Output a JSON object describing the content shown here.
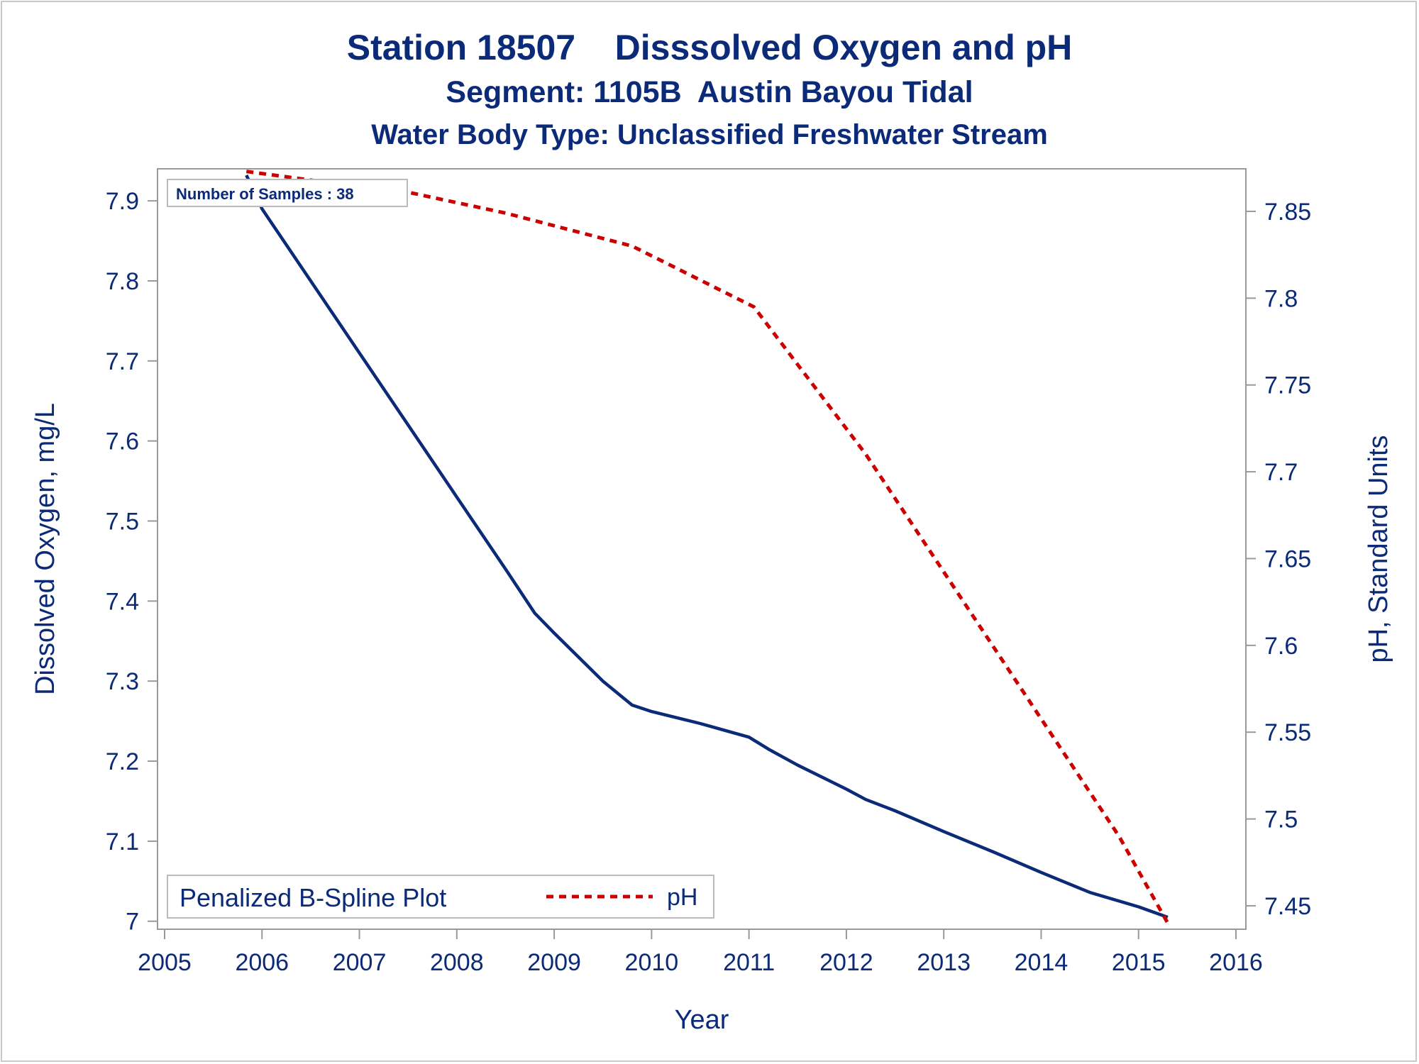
{
  "titles": {
    "line1": "Station 18507    Disssolved Oxygen and pH",
    "line2": "Segment: 1105B  Austin Bayou Tidal",
    "line3": "Water Body Type: Unclassified Freshwater Stream"
  },
  "annotation": "Number of Samples : 38",
  "legend": {
    "spline_label": "Penalized B-Spline Plot",
    "ph_label": "pH"
  },
  "colors": {
    "dissolved_oxygen": "#0b2a78",
    "ph": "#cc0000",
    "text": "#0b2a78",
    "axis": "#999999"
  },
  "chart_data": {
    "type": "line",
    "xlabel": "Year",
    "ylabel_left": "Dissolved Oxygen, mg/L",
    "ylabel_right": "pH, Standard Units",
    "xlim": [
      2005,
      2016
    ],
    "ylim_left": [
      6.99,
      7.94
    ],
    "ylim_right": [
      7.4365,
      7.8745
    ],
    "x_ticks": [
      2005,
      2006,
      2007,
      2008,
      2009,
      2010,
      2011,
      2012,
      2013,
      2014,
      2015,
      2016
    ],
    "y_ticks_left": [
      {
        "value": 7.0,
        "label": "7"
      },
      {
        "value": 7.1,
        "label": "7.1"
      },
      {
        "value": 7.2,
        "label": "7.2"
      },
      {
        "value": 7.3,
        "label": "7.3"
      },
      {
        "value": 7.4,
        "label": "7.4"
      },
      {
        "value": 7.5,
        "label": "7.5"
      },
      {
        "value": 7.6,
        "label": "7.6"
      },
      {
        "value": 7.7,
        "label": "7.7"
      },
      {
        "value": 7.8,
        "label": "7.8"
      },
      {
        "value": 7.9,
        "label": "7.9"
      }
    ],
    "y_ticks_right": [
      {
        "value": 7.45,
        "label": "7.45"
      },
      {
        "value": 7.5,
        "label": "7.5"
      },
      {
        "value": 7.55,
        "label": "7.55"
      },
      {
        "value": 7.6,
        "label": "7.6"
      },
      {
        "value": 7.65,
        "label": "7.65"
      },
      {
        "value": 7.7,
        "label": "7.7"
      },
      {
        "value": 7.75,
        "label": "7.75"
      },
      {
        "value": 7.8,
        "label": "7.8"
      },
      {
        "value": 7.85,
        "label": "7.85"
      }
    ],
    "legend_position": "bottom-left",
    "series": [
      {
        "name": "Penalized B-Spline Plot",
        "axis": "left",
        "style": "solid",
        "x": [
          2005.84,
          2006.0,
          2006.5,
          2007.0,
          2007.5,
          2008.0,
          2008.5,
          2008.8,
          2009.0,
          2009.5,
          2009.8,
          2010.0,
          2010.5,
          2011.0,
          2011.2,
          2011.5,
          2012.0,
          2012.2,
          2012.5,
          2013.0,
          2013.5,
          2014.0,
          2014.5,
          2015.0,
          2015.3
        ],
        "values": [
          7.932,
          7.89,
          7.8,
          7.71,
          7.62,
          7.53,
          7.44,
          7.385,
          7.36,
          7.3,
          7.27,
          7.262,
          7.247,
          7.23,
          7.215,
          7.195,
          7.165,
          7.152,
          7.138,
          7.112,
          7.087,
          7.061,
          7.036,
          7.018,
          7.005
        ]
      },
      {
        "name": "pH",
        "axis": "right",
        "style": "dashed",
        "x": [
          2005.84,
          2006.5,
          2007.5,
          2008.5,
          2009.8,
          2011.05,
          2012.2,
          2013.5,
          2014.8,
          2015.3
        ],
        "values": [
          7.873,
          7.868,
          7.861,
          7.849,
          7.83,
          7.795,
          7.71,
          7.6,
          7.49,
          7.44
        ]
      }
    ]
  }
}
